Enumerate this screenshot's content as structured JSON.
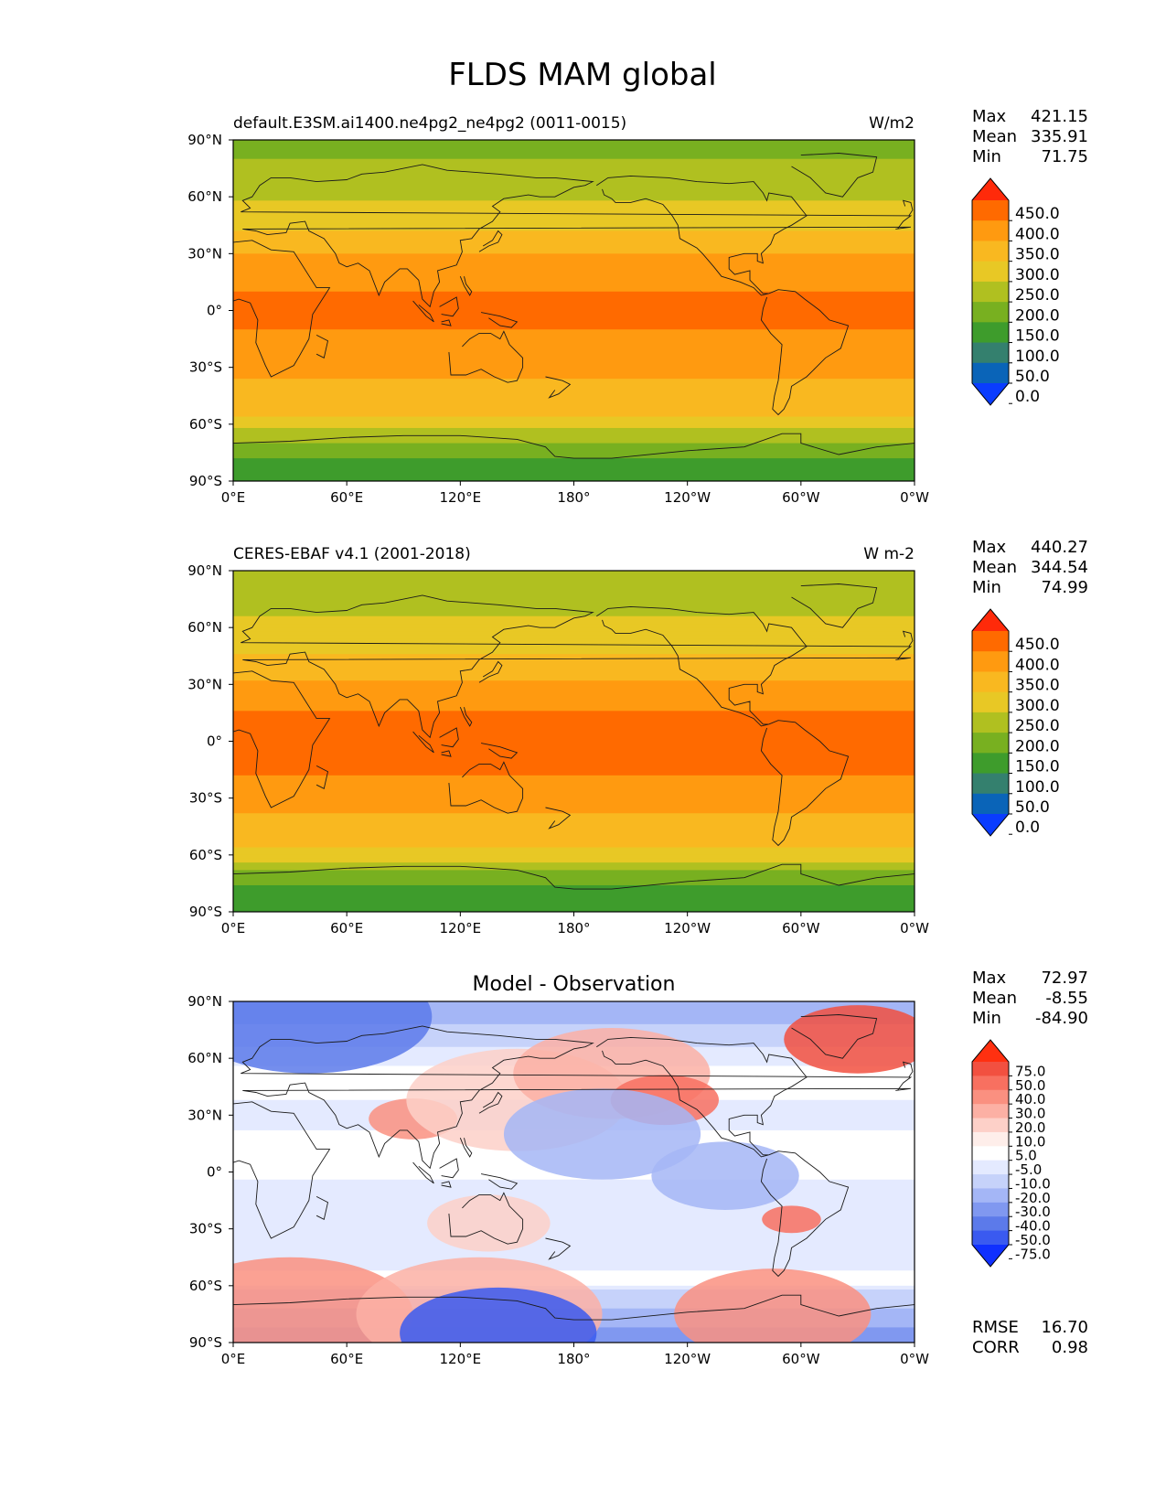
{
  "title": "FLDS MAM global",
  "chart_data": [
    {
      "type": "heatmap",
      "title_left": "default.E3SM.ai1400.ne4pg2_ne4pg2 (0011-0015)",
      "title_right": "W/m2",
      "stats": {
        "Max": "421.15",
        "Mean": "335.91",
        "Min": "71.75"
      },
      "x_ticks": [
        "0°E",
        "60°E",
        "120°E",
        "180°",
        "120°W",
        "60°W",
        "0°W"
      ],
      "y_ticks": [
        "90°N",
        "60°N",
        "30°N",
        "0°",
        "30°S",
        "60°S",
        "90°S"
      ],
      "colorbar": {
        "levels": [
          "450.0",
          "400.0",
          "350.0",
          "300.0",
          "250.0",
          "200.0",
          "150.0",
          "100.0",
          "50.0",
          "0.0"
        ],
        "colors": [
          "#ff2a0a",
          "#ff6a00",
          "#ff9a10",
          "#f9b820",
          "#e8c825",
          "#b0c020",
          "#78b020",
          "#3e9c2c",
          "#34806e",
          "#0a64b8",
          "#0a3cff"
        ]
      },
      "lat_profile": [
        {
          "lat": 90,
          "value": 190
        },
        {
          "lat": 75,
          "value": 205
        },
        {
          "lat": 60,
          "value": 240
        },
        {
          "lat": 45,
          "value": 290
        },
        {
          "lat": 30,
          "value": 350
        },
        {
          "lat": 15,
          "value": 395
        },
        {
          "lat": 0,
          "value": 410
        },
        {
          "lat": -15,
          "value": 395
        },
        {
          "lat": -30,
          "value": 360
        },
        {
          "lat": -45,
          "value": 330
        },
        {
          "lat": -55,
          "value": 300
        },
        {
          "lat": -62,
          "value": 255
        },
        {
          "lat": -70,
          "value": 200
        },
        {
          "lat": -80,
          "value": 140
        },
        {
          "lat": -90,
          "value": 110
        }
      ]
    },
    {
      "type": "heatmap",
      "title_left": "CERES-EBAF v4.1 (2001-2018)",
      "title_right": "W m-2",
      "stats": {
        "Max": "440.27",
        "Mean": "344.54",
        "Min": "74.99"
      },
      "x_ticks": [
        "0°E",
        "60°E",
        "120°E",
        "180°",
        "120°W",
        "60°W",
        "0°W"
      ],
      "y_ticks": [
        "90°N",
        "60°N",
        "30°N",
        "0°",
        "30°S",
        "60°S",
        "90°S"
      ],
      "colorbar": {
        "levels": [
          "450.0",
          "400.0",
          "350.0",
          "300.0",
          "250.0",
          "200.0",
          "150.0",
          "100.0",
          "50.0",
          "0.0"
        ],
        "colors": [
          "#ff2a0a",
          "#ff6a00",
          "#ff9a10",
          "#f9b820",
          "#e8c825",
          "#b0c020",
          "#78b020",
          "#3e9c2c",
          "#34806e",
          "#0a64b8",
          "#0a3cff"
        ]
      },
      "lat_profile": [
        {
          "lat": 90,
          "value": 210
        },
        {
          "lat": 75,
          "value": 230
        },
        {
          "lat": 60,
          "value": 265
        },
        {
          "lat": 45,
          "value": 305
        },
        {
          "lat": 30,
          "value": 360
        },
        {
          "lat": 15,
          "value": 405
        },
        {
          "lat": 0,
          "value": 420
        },
        {
          "lat": -15,
          "value": 405
        },
        {
          "lat": -30,
          "value": 370
        },
        {
          "lat": -45,
          "value": 335
        },
        {
          "lat": -55,
          "value": 305
        },
        {
          "lat": -62,
          "value": 260
        },
        {
          "lat": -70,
          "value": 185
        },
        {
          "lat": -80,
          "value": 130
        },
        {
          "lat": -90,
          "value": 120
        }
      ]
    },
    {
      "type": "heatmap",
      "title_center": "Model - Observation",
      "stats": {
        "Max": "72.97",
        "Mean": "-8.55",
        "Min": "-84.90"
      },
      "x_ticks": [
        "0°E",
        "60°E",
        "120°E",
        "180°",
        "120°W",
        "60°W",
        "0°W"
      ],
      "y_ticks": [
        "90°N",
        "60°N",
        "30°N",
        "0°",
        "30°S",
        "60°S",
        "90°S"
      ],
      "colorbar": {
        "levels": [
          "75.0",
          "50.0",
          "40.0",
          "30.0",
          "20.0",
          "10.0",
          "5.0",
          "-5.0",
          "-10.0",
          "-20.0",
          "-30.0",
          "-40.0",
          "-50.0",
          "-75.0"
        ],
        "colors": [
          "#ff3010",
          "#f25040",
          "#f87060",
          "#fa9080",
          "#fcb0a4",
          "#fdd0c8",
          "#feeeea",
          "#ffffff",
          "#e4eaff",
          "#c6d2fa",
          "#a4b6f6",
          "#8098f0",
          "#5c7aea",
          "#3a5af0",
          "#1030ff"
        ]
      },
      "bottom_stats": {
        "RMSE": "16.70",
        "CORR": "0.98"
      },
      "lat_profile": [
        {
          "lat": 90,
          "value": -30
        },
        {
          "lat": 80,
          "value": -22
        },
        {
          "lat": 70,
          "value": -12
        },
        {
          "lat": 60,
          "value": -6
        },
        {
          "lat": 45,
          "value": -3
        },
        {
          "lat": 30,
          "value": -8
        },
        {
          "lat": 15,
          "value": -3
        },
        {
          "lat": 0,
          "value": -4
        },
        {
          "lat": -15,
          "value": -8
        },
        {
          "lat": -30,
          "value": -10
        },
        {
          "lat": -45,
          "value": -7
        },
        {
          "lat": -58,
          "value": -3
        },
        {
          "lat": -65,
          "value": -15
        },
        {
          "lat": -75,
          "value": -22
        },
        {
          "lat": -85,
          "value": -35
        },
        {
          "lat": -90,
          "value": -40
        }
      ]
    }
  ]
}
